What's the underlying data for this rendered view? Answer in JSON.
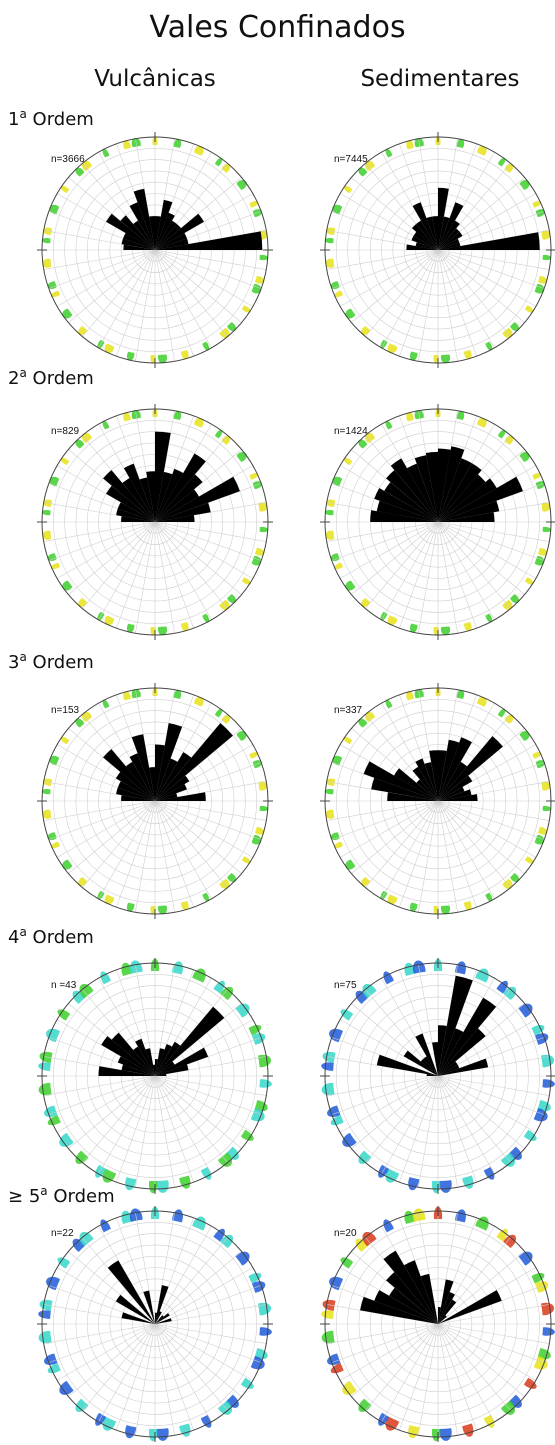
{
  "title": "Vales Confinados",
  "columns": [
    "Vulcânicas",
    "Sedimentares"
  ],
  "rows": [
    {
      "label_prefix": "",
      "label_num": "1",
      "label_sup": "a",
      "label_word": " Ordem"
    },
    {
      "label_prefix": "",
      "label_num": "2",
      "label_sup": "a",
      "label_word": " Ordem"
    },
    {
      "label_prefix": "",
      "label_num": "3",
      "label_sup": "a",
      "label_word": " Ordem"
    },
    {
      "label_prefix": "",
      "label_num": "4",
      "label_sup": "a",
      "label_word": " Ordem"
    },
    {
      "label_prefix": "≥ ",
      "label_num": "5",
      "label_sup": "a",
      "label_word": " Ordem"
    }
  ],
  "chart_data": [
    {
      "type": "rose",
      "panel": "1ª Ordem – Vulcânicas",
      "n_label": "n=3666",
      "ring_style": "green",
      "bin_width_deg": 10,
      "bin_start_deg": [
        0,
        10,
        20,
        30,
        40,
        50,
        60,
        70,
        80,
        270,
        280,
        290,
        300,
        310,
        320,
        330,
        340,
        350
      ],
      "radius": [
        0.3,
        0.45,
        0.35,
        0.3,
        0.3,
        0.5,
        0.3,
        0.3,
        0.95,
        0.28,
        0.3,
        0.3,
        0.5,
        0.4,
        0.3,
        0.45,
        0.55,
        0.3
      ]
    },
    {
      "type": "rose",
      "panel": "1ª Ordem – Sedimentares",
      "n_label": "n=7445",
      "ring_style": "green",
      "bin_width_deg": 10,
      "bin_start_deg": [
        0,
        10,
        20,
        30,
        40,
        50,
        60,
        70,
        80,
        270,
        280,
        290,
        300,
        310,
        320,
        330,
        340,
        350
      ],
      "radius": [
        0.55,
        0.3,
        0.45,
        0.3,
        0.25,
        0.25,
        0.2,
        0.2,
        0.9,
        0.28,
        0.2,
        0.25,
        0.25,
        0.3,
        0.3,
        0.45,
        0.3,
        0.3
      ]
    },
    {
      "type": "rose",
      "panel": "2ª Ordem – Vulcânicas",
      "n_label": "n=829",
      "ring_style": "green",
      "bin_width_deg": 10,
      "bin_start_deg": [
        0,
        10,
        20,
        30,
        40,
        50,
        60,
        70,
        80,
        270,
        280,
        290,
        300,
        310,
        320,
        330,
        340,
        350
      ],
      "radius": [
        0.8,
        0.45,
        0.5,
        0.7,
        0.55,
        0.45,
        0.8,
        0.5,
        0.35,
        0.3,
        0.35,
        0.35,
        0.5,
        0.6,
        0.45,
        0.55,
        0.4,
        0.45
      ]
    },
    {
      "type": "rose",
      "panel": "2ª Ordem – Sedimentares",
      "n_label": "n=1424",
      "ring_style": "green",
      "bin_width_deg": 10,
      "bin_start_deg": [
        0,
        10,
        20,
        30,
        40,
        50,
        60,
        70,
        80,
        270,
        280,
        290,
        300,
        310,
        320,
        330,
        340,
        350
      ],
      "radius": [
        0.65,
        0.68,
        0.6,
        0.6,
        0.55,
        0.6,
        0.8,
        0.55,
        0.5,
        0.6,
        0.55,
        0.6,
        0.55,
        0.6,
        0.65,
        0.55,
        0.6,
        0.62
      ]
    },
    {
      "type": "rose",
      "panel": "3ª Ordem – Vulcânicas",
      "n_label": "n=153",
      "ring_style": "green",
      "bin_width_deg": 10,
      "bin_start_deg": [
        0,
        10,
        20,
        30,
        40,
        50,
        60,
        70,
        80,
        270,
        280,
        290,
        300,
        310,
        320,
        330,
        340,
        350
      ],
      "radius": [
        0.5,
        0.7,
        0.4,
        0.5,
        0.9,
        0.35,
        0.3,
        0.2,
        0.45,
        0.3,
        0.35,
        0.35,
        0.4,
        0.6,
        0.4,
        0.45,
        0.6,
        0.3
      ]
    },
    {
      "type": "rose",
      "panel": "3ª Ordem – Sedimentares",
      "n_label": "n=337",
      "ring_style": "green",
      "bin_width_deg": 10,
      "bin_start_deg": [
        0,
        10,
        20,
        30,
        40,
        50,
        60,
        70,
        80,
        270,
        280,
        290,
        300,
        310,
        320,
        330,
        340,
        350
      ],
      "radius": [
        0.45,
        0.55,
        0.6,
        0.4,
        0.75,
        0.35,
        0.25,
        0.3,
        0.35,
        0.45,
        0.6,
        0.7,
        0.45,
        0.25,
        0.35,
        0.4,
        0.35,
        0.45
      ]
    },
    {
      "type": "rose",
      "panel": "4ª Ordem – Vulcânicas",
      "n_label": "n =43",
      "ring_style": "cyan",
      "bin_width_deg": 10,
      "bin_start_deg": [
        0,
        10,
        20,
        30,
        40,
        50,
        60,
        70,
        80,
        270,
        280,
        290,
        300,
        310,
        320,
        330,
        340,
        350
      ],
      "radius": [
        0.15,
        0.25,
        0.3,
        0.35,
        0.8,
        0.2,
        0.5,
        0.3,
        0.1,
        0.5,
        0.3,
        0.35,
        0.55,
        0.5,
        0.3,
        0.35,
        0.25,
        0.1
      ]
    },
    {
      "type": "rose",
      "panel": "4ª Ordem – Sedimentares",
      "n_label": "n=75",
      "ring_style": "blue",
      "bin_width_deg": 10,
      "bin_start_deg": [
        0,
        10,
        20,
        30,
        40,
        50,
        60,
        70,
        80,
        270,
        280,
        290,
        300,
        310,
        320,
        330,
        340,
        350
      ],
      "radius": [
        0.45,
        0.9,
        0.45,
        0.8,
        0.55,
        0.2,
        0.2,
        0.45,
        0.0,
        0.1,
        0.55,
        0.0,
        0.35,
        0.2,
        0.2,
        0.4,
        0.0,
        0.3
      ]
    },
    {
      "type": "rose",
      "panel": "≥ 5ª Ordem – Vulcânicas",
      "n_label": "n=22",
      "ring_style": "blue",
      "bin_width_deg": 10,
      "bin_start_deg": [
        0,
        10,
        20,
        30,
        40,
        50,
        60,
        70,
        80,
        270,
        280,
        290,
        300,
        310,
        320,
        330,
        340,
        350
      ],
      "radius": [
        0.1,
        0.35,
        0.12,
        0.0,
        0.1,
        0.15,
        0.0,
        0.15,
        0.0,
        0.0,
        0.3,
        0.0,
        0.4,
        0.0,
        0.65,
        0.0,
        0.3,
        0.0
      ]
    },
    {
      "type": "rose",
      "panel": "≥ 5ª Ordem – Sedimentares",
      "n_label": "n=20",
      "ring_style": "mixed",
      "bin_width_deg": 10,
      "bin_start_deg": [
        0,
        10,
        20,
        30,
        40,
        50,
        60,
        70,
        80,
        270,
        280,
        290,
        300,
        310,
        320,
        330,
        340,
        350
      ],
      "radius": [
        0.15,
        0.4,
        0.3,
        0.25,
        0.1,
        0.0,
        0.6,
        0.0,
        0.0,
        0.0,
        0.7,
        0.6,
        0.5,
        0.6,
        0.75,
        0.6,
        0.45,
        0.0
      ]
    }
  ],
  "colors": {
    "bars": "#000000",
    "grid": "#cfcfcf",
    "circle": "#444444",
    "green": "#3ccf2a",
    "yellow": "#e6e21a",
    "cyan": "#35d6c8",
    "blue": "#1e5ad8",
    "red": "#d8381a"
  }
}
